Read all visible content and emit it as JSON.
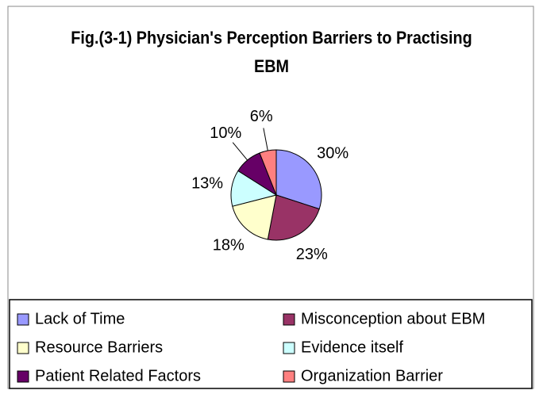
{
  "chart_data": {
    "type": "pie",
    "title": "Fig.(3-1) Physician's Perception Barriers to Practising EBM",
    "categories": [
      "Lack of Time",
      "Misconception about EBM",
      "Resource Barriers",
      "Evidence itself",
      "Patient Related Factors",
      "Organization Barrier"
    ],
    "values": [
      30,
      23,
      18,
      13,
      10,
      6
    ],
    "value_labels": [
      "30%",
      "23%",
      "18%",
      "13%",
      "10%",
      "6%"
    ],
    "colors": [
      "#9999ff",
      "#993366",
      "#ffffcc",
      "#ccffff",
      "#660066",
      "#ff8080"
    ]
  }
}
